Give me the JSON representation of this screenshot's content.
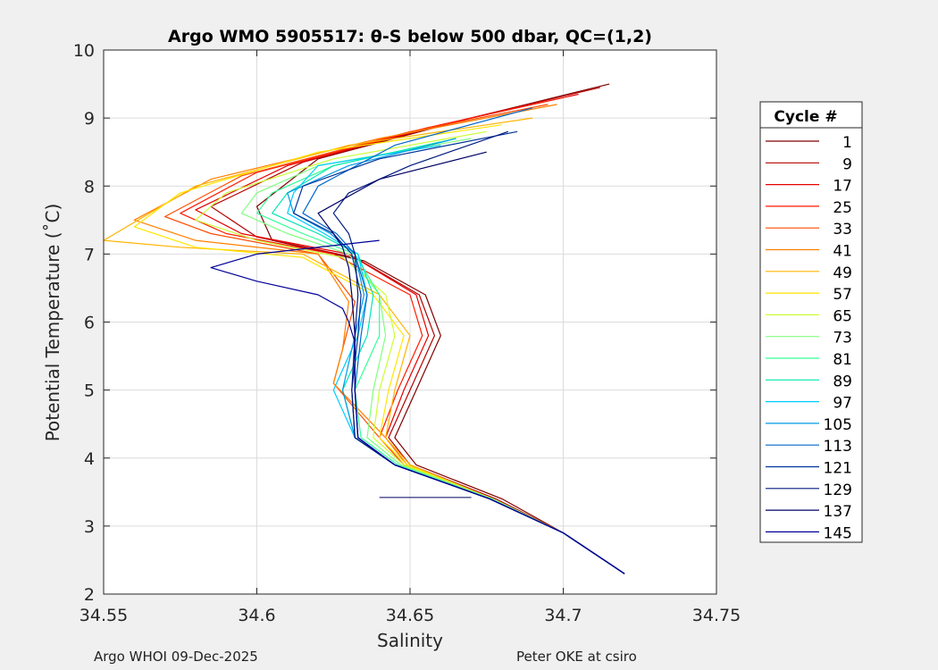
{
  "chart_data": {
    "type": "line",
    "title": "Argo WMO 5905517: θ-S below 500 dbar,  QC=(1,2)",
    "xlabel": "Salinity",
    "ylabel": "Potential Temperature (˚C)",
    "xlim": [
      34.55,
      34.75
    ],
    "ylim": [
      2,
      10
    ],
    "x_ticks": [
      "34.55",
      "34.6",
      "34.65",
      "34.7",
      "34.75"
    ],
    "y_ticks": [
      "2",
      "3",
      "4",
      "5",
      "6",
      "7",
      "8",
      "9",
      "10"
    ],
    "grid": true,
    "legend_title": "Cycle #",
    "legend_position": "outside-right",
    "colormap": "jet",
    "series": [
      {
        "name": "1",
        "color": "#800000",
        "x": [
          34.715,
          34.67,
          34.62,
          34.6,
          34.605,
          34.635,
          34.655,
          34.66,
          34.652,
          34.645,
          34.652,
          34.68,
          34.7,
          34.72
        ],
        "y": [
          9.5,
          9.0,
          8.4,
          7.7,
          7.2,
          6.9,
          6.4,
          5.8,
          5.0,
          4.3,
          3.9,
          3.4,
          2.9,
          2.3
        ]
      },
      {
        "name": "9",
        "color": "#b30000",
        "x": [
          34.712,
          34.665,
          34.615,
          34.585,
          34.6,
          34.632,
          34.653,
          34.658,
          34.65,
          34.643,
          34.65,
          34.678,
          34.7,
          34.72
        ],
        "y": [
          9.45,
          8.95,
          8.35,
          7.7,
          7.25,
          6.95,
          6.4,
          5.8,
          5.0,
          4.3,
          3.9,
          3.4,
          2.9,
          2.3
        ]
      },
      {
        "name": "17",
        "color": "#e60000",
        "x": [
          34.705,
          34.66,
          34.61,
          34.58,
          34.595,
          34.63,
          34.652,
          34.656,
          34.648,
          34.642,
          34.649,
          34.677,
          34.7,
          34.72
        ],
        "y": [
          9.35,
          8.9,
          8.3,
          7.65,
          7.3,
          7.0,
          6.4,
          5.8,
          5.0,
          4.3,
          3.9,
          3.4,
          2.9,
          2.3
        ]
      },
      {
        "name": "25",
        "color": "#ff1a00",
        "x": [
          34.7,
          34.655,
          34.6,
          34.575,
          34.59,
          34.625,
          34.65,
          34.654,
          34.646,
          34.64,
          34.648,
          34.676,
          34.7,
          34.72
        ],
        "y": [
          9.3,
          8.85,
          8.2,
          7.6,
          7.3,
          7.0,
          6.4,
          5.8,
          5.0,
          4.3,
          3.9,
          3.4,
          2.9,
          2.3
        ]
      },
      {
        "name": "33",
        "color": "#ff4d00",
        "x": [
          34.695,
          34.65,
          34.595,
          34.57,
          34.585,
          34.62,
          34.632,
          34.628,
          34.625,
          34.64,
          34.648,
          34.676,
          34.7,
          34.72
        ],
        "y": [
          9.2,
          8.8,
          8.15,
          7.55,
          7.3,
          7.0,
          6.3,
          5.6,
          5.1,
          4.3,
          3.9,
          3.4,
          2.9,
          2.3
        ]
      },
      {
        "name": "41",
        "color": "#ff8000",
        "x": [
          34.698,
          34.64,
          34.585,
          34.56,
          34.58,
          34.62,
          34.63,
          34.628,
          34.625,
          34.642,
          34.649,
          34.676,
          34.7,
          34.72
        ],
        "y": [
          9.2,
          8.7,
          8.1,
          7.5,
          7.2,
          7.0,
          6.3,
          5.6,
          5.1,
          4.3,
          3.9,
          3.4,
          2.9,
          2.3
        ]
      },
      {
        "name": "49",
        "color": "#ffb300",
        "x": [
          34.69,
          34.63,
          34.58,
          34.55,
          34.575,
          34.615,
          34.64,
          34.65,
          34.645,
          34.642,
          34.65,
          34.677,
          34.7,
          34.72
        ],
        "y": [
          9.0,
          8.6,
          8.0,
          7.2,
          7.1,
          7.0,
          6.4,
          5.8,
          5.0,
          4.3,
          3.9,
          3.4,
          2.9,
          2.3
        ]
      },
      {
        "name": "57",
        "color": "#ffe600",
        "x": [
          34.68,
          34.62,
          34.575,
          34.56,
          34.58,
          34.615,
          34.638,
          34.648,
          34.643,
          34.64,
          34.649,
          34.677,
          34.7,
          34.72
        ],
        "y": [
          8.9,
          8.5,
          7.9,
          7.4,
          7.1,
          6.95,
          6.4,
          5.8,
          5.0,
          4.3,
          3.9,
          3.4,
          2.9,
          2.3
        ]
      },
      {
        "name": "65",
        "color": "#ccff33",
        "x": [
          34.675,
          34.625,
          34.59,
          34.58,
          34.6,
          34.628,
          34.642,
          34.645,
          34.64,
          34.638,
          34.648,
          34.677,
          34.7,
          34.72
        ],
        "y": [
          8.8,
          8.4,
          7.9,
          7.5,
          7.2,
          6.95,
          6.4,
          5.8,
          5.0,
          4.3,
          3.9,
          3.4,
          2.9,
          2.3
        ]
      },
      {
        "name": "73",
        "color": "#80ff80",
        "x": [
          34.67,
          34.62,
          34.6,
          34.595,
          34.61,
          34.63,
          34.64,
          34.642,
          34.638,
          34.636,
          34.647,
          34.677,
          34.7,
          34.72
        ],
        "y": [
          8.7,
          8.3,
          7.9,
          7.6,
          7.3,
          7.0,
          6.4,
          5.8,
          5.0,
          4.3,
          3.9,
          3.4,
          2.9,
          2.3
        ]
      },
      {
        "name": "81",
        "color": "#33ff99",
        "x": [
          34.665,
          34.625,
          34.605,
          34.6,
          34.615,
          34.632,
          34.64,
          34.64,
          34.632,
          34.634,
          34.646,
          34.676,
          34.7,
          34.72
        ],
        "y": [
          8.7,
          8.3,
          7.9,
          7.6,
          7.3,
          7.0,
          6.4,
          5.8,
          5.0,
          4.3,
          3.9,
          3.4,
          2.9,
          2.3
        ]
      },
      {
        "name": "89",
        "color": "#00e6b3",
        "x": [
          34.66,
          34.625,
          34.61,
          34.605,
          34.62,
          34.633,
          34.638,
          34.636,
          34.628,
          34.632,
          34.645,
          34.676,
          34.7,
          34.72
        ],
        "y": [
          8.65,
          8.3,
          7.9,
          7.6,
          7.3,
          7.0,
          6.4,
          5.8,
          5.0,
          4.3,
          3.9,
          3.4,
          2.9,
          2.3
        ]
      },
      {
        "name": "97",
        "color": "#00ccff",
        "x": [
          34.66,
          34.62,
          34.612,
          34.61,
          34.622,
          34.633,
          34.636,
          34.633,
          34.625,
          34.632,
          34.645,
          34.676,
          34.7,
          34.72
        ],
        "y": [
          8.6,
          8.3,
          7.9,
          7.6,
          7.3,
          7.0,
          6.4,
          5.8,
          5.0,
          4.3,
          3.9,
          3.4,
          2.9,
          2.3
        ]
      },
      {
        "name": "105",
        "color": "#0099e6",
        "x": [
          34.665,
          34.63,
          34.61,
          34.612,
          34.624,
          34.632,
          34.635,
          34.632,
          34.628,
          34.632,
          34.645,
          34.676,
          34.7,
          34.72
        ],
        "y": [
          8.7,
          8.3,
          7.9,
          7.6,
          7.3,
          7.0,
          6.4,
          5.8,
          5.0,
          4.3,
          3.9,
          3.4,
          2.9,
          2.3
        ]
      },
      {
        "name": "113",
        "color": "#0066cc",
        "x": [
          34.69,
          34.645,
          34.62,
          34.615,
          34.626,
          34.632,
          34.636,
          34.634,
          34.632,
          34.633,
          34.645,
          34.676,
          34.7,
          34.72
        ],
        "y": [
          9.15,
          8.6,
          8.0,
          7.6,
          7.3,
          7.0,
          6.4,
          5.8,
          5.0,
          4.3,
          3.9,
          3.4,
          2.9,
          2.3
        ]
      },
      {
        "name": "121",
        "color": "#003399",
        "x": [
          34.685,
          34.64,
          34.615,
          34.612,
          34.625,
          34.631,
          34.634,
          34.633,
          34.631,
          34.632,
          34.645,
          34.676,
          34.7,
          34.72
        ],
        "y": [
          8.8,
          8.4,
          8.0,
          7.6,
          7.3,
          7.0,
          6.4,
          5.8,
          5.0,
          4.3,
          3.9,
          3.4,
          2.9,
          2.3
        ]
      },
      {
        "name": "129",
        "color": "#001a80",
        "x": [
          34.682,
          34.65,
          34.63,
          34.625,
          34.63,
          34.632,
          34.633,
          34.632,
          34.631,
          34.632,
          34.645,
          34.676,
          34.7,
          34.72
        ],
        "y": [
          8.8,
          8.3,
          7.9,
          7.6,
          7.3,
          7.0,
          6.4,
          5.8,
          5.0,
          4.3,
          3.9,
          3.4,
          2.9,
          2.3
        ]
      },
      {
        "name": "137",
        "color": "#000066",
        "x": [
          34.675,
          34.64,
          34.62,
          34.625,
          34.628,
          34.63,
          34.631,
          34.632,
          34.632,
          34.633,
          34.645,
          34.676,
          34.7,
          34.72
        ],
        "y": [
          8.5,
          8.1,
          7.6,
          7.3,
          7.1,
          6.8,
          6.4,
          5.8,
          5.0,
          4.3,
          3.9,
          3.4,
          2.9,
          2.3
        ]
      },
      {
        "name": "145",
        "color": "#000099",
        "x": [
          34.64,
          34.6,
          34.585,
          34.6,
          34.62,
          34.628,
          34.63,
          34.632,
          34.632,
          34.633,
          34.645,
          34.676,
          34.7,
          34.72
        ],
        "y": [
          7.2,
          7.0,
          6.8,
          6.6,
          6.4,
          6.2,
          6.0,
          5.7,
          5.0,
          4.3,
          3.9,
          3.4,
          2.9,
          2.3
        ]
      }
    ],
    "annotations": [
      {
        "type": "hline",
        "color": "#000066",
        "x": [
          34.64,
          34.67
        ],
        "y": [
          3.42,
          3.42
        ]
      }
    ]
  },
  "footer": {
    "left": "Argo WHOI 09-Dec-2025",
    "right": "Peter OKE at csiro"
  }
}
